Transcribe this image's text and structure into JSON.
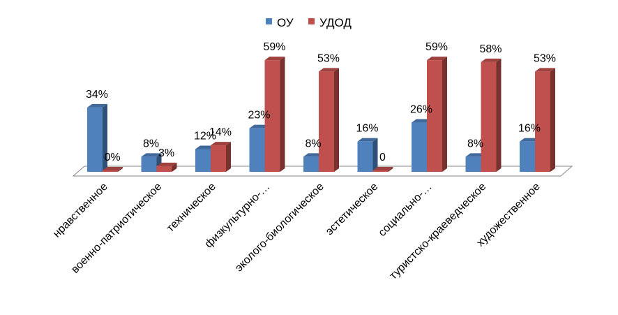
{
  "chart_data": {
    "type": "bar",
    "title": "",
    "xlabel": "",
    "ylabel": "",
    "legend_position": "top",
    "ylim": [
      0,
      0.62
    ],
    "categories": [
      "нравственное",
      "военно-патриотическое",
      "техническое",
      "физкультурно-…",
      "эколого-биологическое",
      "эстетическое",
      "социально-…",
      "туристско-краеведческое",
      "художественное"
    ],
    "series": [
      {
        "name": "ОУ",
        "color": "#4F81BD",
        "values": [
          0.34,
          0.08,
          0.12,
          0.23,
          0.08,
          0.16,
          0.26,
          0.08,
          0.16
        ],
        "labels": [
          "34%",
          "8%",
          "12%",
          "23%",
          "8%",
          "16%",
          "26%",
          "8%",
          "16%"
        ]
      },
      {
        "name": "УДОД",
        "color": "#C0504D",
        "values": [
          0,
          0.03,
          0.14,
          0.59,
          0.53,
          0,
          0.59,
          0.58,
          0.53
        ],
        "labels": [
          "0%",
          "3%",
          "14%",
          "59%",
          "53%",
          "0",
          "59%",
          "58%",
          "53%"
        ]
      }
    ]
  }
}
